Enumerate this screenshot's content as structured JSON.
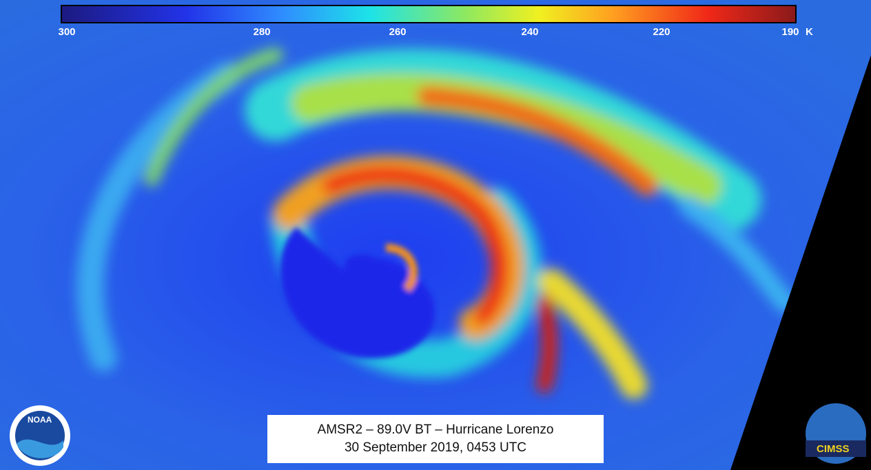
{
  "colorbar": {
    "ticks": [
      300,
      280,
      260,
      240,
      220,
      190
    ],
    "unit": "K"
  },
  "caption": {
    "line1": "AMSR2 – 89.0V BT – Hurricane Lorenzo",
    "line2": "30 September 2019, 0453 UTC"
  },
  "logos": {
    "left": "NOAA",
    "right": "CIMSS"
  }
}
